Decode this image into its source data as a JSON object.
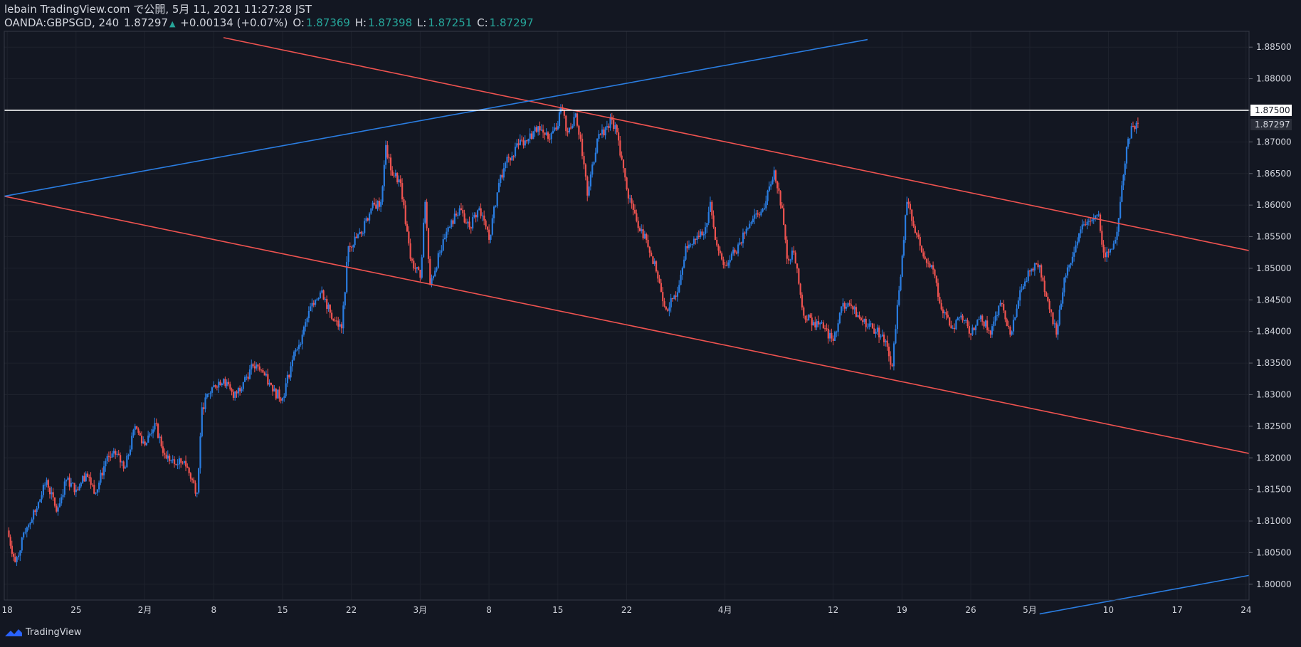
{
  "header": {
    "line1": "lebain TradingView.com で公開, 5月 11, 2021 11:27:28 JST",
    "symbol": "OANDA:GBPSGD, 240",
    "last": "1.87297",
    "change": "+0.00134 (+0.07%)",
    "open_label": "O:",
    "open": "1.87369",
    "high_label": "H:",
    "high": "1.87398",
    "low_label": "L:",
    "low": "1.87251",
    "close_label": "C:",
    "close": "1.87297"
  },
  "footer": {
    "brand": "TradingView"
  },
  "colors": {
    "background": "#131722",
    "up": "#2a7de1",
    "down": "#ef5350",
    "grid": "#1e222d",
    "text": "#d1d4dc",
    "hline": "#ffffff"
  },
  "chart_data": {
    "type": "candlestick",
    "symbol": "OANDA:GBPSGD",
    "interval": "240",
    "ylim": [
      1.7975,
      1.8875
    ],
    "y_ticks": [
      "1.88500",
      "1.88000",
      "1.87500",
      "1.87000",
      "1.86500",
      "1.86000",
      "1.85500",
      "1.85000",
      "1.84500",
      "1.84000",
      "1.83500",
      "1.83000",
      "1.82500",
      "1.82000",
      "1.81500",
      "1.81000",
      "1.80500",
      "1.80000"
    ],
    "x_ticks": [
      "18",
      "25",
      "2月",
      "8",
      "15",
      "22",
      "3月",
      "8",
      "15",
      "22",
      "4月",
      "12",
      "19",
      "26",
      "5月",
      "10",
      "17",
      "24"
    ],
    "x_tick_days": [
      0,
      7,
      14,
      21,
      28,
      35,
      42,
      49,
      56,
      63,
      73,
      84,
      91,
      98,
      104,
      112,
      119,
      126
    ],
    "x_range_days": [
      -0.3,
      126.3
    ],
    "price_labels": {
      "hline": "1.87500",
      "last": "1.87297"
    },
    "series": [
      {
        "day": 0,
        "price": 1.8085
      },
      {
        "day": 0.8,
        "price": 1.8035
      },
      {
        "day": 2,
        "price": 1.809
      },
      {
        "day": 3,
        "price": 1.812
      },
      {
        "day": 4,
        "price": 1.8165
      },
      {
        "day": 5,
        "price": 1.8115
      },
      {
        "day": 6,
        "price": 1.8165
      },
      {
        "day": 7,
        "price": 1.815
      },
      {
        "day": 8,
        "price": 1.8175
      },
      {
        "day": 9,
        "price": 1.8145
      },
      {
        "day": 10,
        "price": 1.8195
      },
      {
        "day": 11,
        "price": 1.8205
      },
      {
        "day": 12,
        "price": 1.8185
      },
      {
        "day": 13,
        "price": 1.825
      },
      {
        "day": 14,
        "price": 1.822
      },
      {
        "day": 15,
        "price": 1.8255
      },
      {
        "day": 16,
        "price": 1.8205
      },
      {
        "day": 17,
        "price": 1.819
      },
      {
        "day": 18,
        "price": 1.8195
      },
      {
        "day": 19.3,
        "price": 1.8145
      },
      {
        "day": 19.8,
        "price": 1.828
      },
      {
        "day": 21,
        "price": 1.8315
      },
      {
        "day": 22,
        "price": 1.8325
      },
      {
        "day": 23,
        "price": 1.8295
      },
      {
        "day": 24,
        "price": 1.832
      },
      {
        "day": 25,
        "price": 1.8345
      },
      {
        "day": 26,
        "price": 1.8335
      },
      {
        "day": 27,
        "price": 1.8305
      },
      {
        "day": 28,
        "price": 1.8295
      },
      {
        "day": 29,
        "price": 1.8355
      },
      {
        "day": 30,
        "price": 1.8395
      },
      {
        "day": 31,
        "price": 1.8445
      },
      {
        "day": 32,
        "price": 1.8465
      },
      {
        "day": 33,
        "price": 1.842
      },
      {
        "day": 34,
        "price": 1.8405
      },
      {
        "day": 34.7,
        "price": 1.8535
      },
      {
        "day": 36,
        "price": 1.8555
      },
      {
        "day": 37,
        "price": 1.8595
      },
      {
        "day": 38,
        "price": 1.8605
      },
      {
        "day": 38.5,
        "price": 1.8695
      },
      {
        "day": 39,
        "price": 1.8655
      },
      {
        "day": 40,
        "price": 1.8635
      },
      {
        "day": 41,
        "price": 1.8515
      },
      {
        "day": 42,
        "price": 1.8485
      },
      {
        "day": 42.5,
        "price": 1.8605
      },
      {
        "day": 43,
        "price": 1.8475
      },
      {
        "day": 44,
        "price": 1.8525
      },
      {
        "day": 45,
        "price": 1.8565
      },
      {
        "day": 46,
        "price": 1.8595
      },
      {
        "day": 47,
        "price": 1.8565
      },
      {
        "day": 48,
        "price": 1.8595
      },
      {
        "day": 49,
        "price": 1.8545
      },
      {
        "day": 50,
        "price": 1.8635
      },
      {
        "day": 51,
        "price": 1.8675
      },
      {
        "day": 52,
        "price": 1.8695
      },
      {
        "day": 53,
        "price": 1.8705
      },
      {
        "day": 54,
        "price": 1.8725
      },
      {
        "day": 55,
        "price": 1.8705
      },
      {
        "day": 56,
        "price": 1.8725
      },
      {
        "day": 56.3,
        "price": 1.8755
      },
      {
        "day": 57,
        "price": 1.8715
      },
      {
        "day": 57.8,
        "price": 1.8745
      },
      {
        "day": 58.3,
        "price": 1.8705
      },
      {
        "day": 59,
        "price": 1.8615
      },
      {
        "day": 60,
        "price": 1.8705
      },
      {
        "day": 61,
        "price": 1.8725
      },
      {
        "day": 61.5,
        "price": 1.8735
      },
      {
        "day": 62,
        "price": 1.8715
      },
      {
        "day": 63,
        "price": 1.8625
      },
      {
        "day": 64,
        "price": 1.8575
      },
      {
        "day": 65,
        "price": 1.8545
      },
      {
        "day": 66,
        "price": 1.8495
      },
      {
        "day": 67,
        "price": 1.8435
      },
      {
        "day": 68,
        "price": 1.8455
      },
      {
        "day": 69,
        "price": 1.8535
      },
      {
        "day": 70,
        "price": 1.8545
      },
      {
        "day": 71,
        "price": 1.8565
      },
      {
        "day": 71.5,
        "price": 1.8605
      },
      {
        "day": 72,
        "price": 1.8545
      },
      {
        "day": 73,
        "price": 1.8505
      },
      {
        "day": 74,
        "price": 1.8525
      },
      {
        "day": 75,
        "price": 1.8555
      },
      {
        "day": 76,
        "price": 1.8585
      },
      {
        "day": 77,
        "price": 1.8595
      },
      {
        "day": 78,
        "price": 1.8655
      },
      {
        "day": 78.8,
        "price": 1.8595
      },
      {
        "day": 79.3,
        "price": 1.8515
      },
      {
        "day": 80,
        "price": 1.8525
      },
      {
        "day": 81,
        "price": 1.8425
      },
      {
        "day": 82,
        "price": 1.8415
      },
      {
        "day": 83,
        "price": 1.8405
      },
      {
        "day": 84,
        "price": 1.8385
      },
      {
        "day": 85,
        "price": 1.8445
      },
      {
        "day": 86,
        "price": 1.8435
      },
      {
        "day": 87,
        "price": 1.8415
      },
      {
        "day": 88,
        "price": 1.8405
      },
      {
        "day": 89,
        "price": 1.8395
      },
      {
        "day": 90,
        "price": 1.8345
      },
      {
        "day": 90.7,
        "price": 1.8465
      },
      {
        "day": 91.5,
        "price": 1.8605
      },
      {
        "day": 92,
        "price": 1.8575
      },
      {
        "day": 93,
        "price": 1.8525
      },
      {
        "day": 94,
        "price": 1.8505
      },
      {
        "day": 95,
        "price": 1.8435
      },
      {
        "day": 96,
        "price": 1.8405
      },
      {
        "day": 97,
        "price": 1.8425
      },
      {
        "day": 98,
        "price": 1.8395
      },
      {
        "day": 99,
        "price": 1.8425
      },
      {
        "day": 100,
        "price": 1.8395
      },
      {
        "day": 101,
        "price": 1.8445
      },
      {
        "day": 102,
        "price": 1.8395
      },
      {
        "day": 103,
        "price": 1.8465
      },
      {
        "day": 104,
        "price": 1.8495
      },
      {
        "day": 105,
        "price": 1.8505
      },
      {
        "day": 106,
        "price": 1.8435
      },
      {
        "day": 106.7,
        "price": 1.8395
      },
      {
        "day": 107.5,
        "price": 1.8485
      },
      {
        "day": 108,
        "price": 1.8505
      },
      {
        "day": 109,
        "price": 1.8555
      },
      {
        "day": 110,
        "price": 1.8575
      },
      {
        "day": 111,
        "price": 1.8585
      },
      {
        "day": 111.5,
        "price": 1.8525
      },
      {
        "day": 112,
        "price": 1.8525
      },
      {
        "day": 112.7,
        "price": 1.8545
      },
      {
        "day": 113.2,
        "price": 1.8605
      },
      {
        "day": 114,
        "price": 1.8705
      },
      {
        "day": 114.5,
        "price": 1.8725
      },
      {
        "day": 115,
        "price": 1.87297
      }
    ],
    "trendlines": [
      {
        "name": "upper-channel-line",
        "color": "red",
        "points": [
          [
            22,
            1.8865
          ],
          [
            126.3,
            1.8528
          ]
        ]
      },
      {
        "name": "lower-channel-line",
        "color": "red",
        "points": [
          [
            -0.3,
            1.8614
          ],
          [
            126.3,
            1.8207
          ]
        ]
      },
      {
        "name": "rising-line-top",
        "color": "blue",
        "points": [
          [
            -0.3,
            1.8614
          ],
          [
            87.5,
            1.8862
          ]
        ]
      },
      {
        "name": "rising-line-bottom",
        "color": "blue",
        "points": [
          [
            105,
            1.7953
          ],
          [
            126.3,
            1.8014
          ]
        ]
      }
    ],
    "hlines": [
      {
        "name": "resistance-hline",
        "price": 1.875,
        "color": "white"
      }
    ]
  }
}
